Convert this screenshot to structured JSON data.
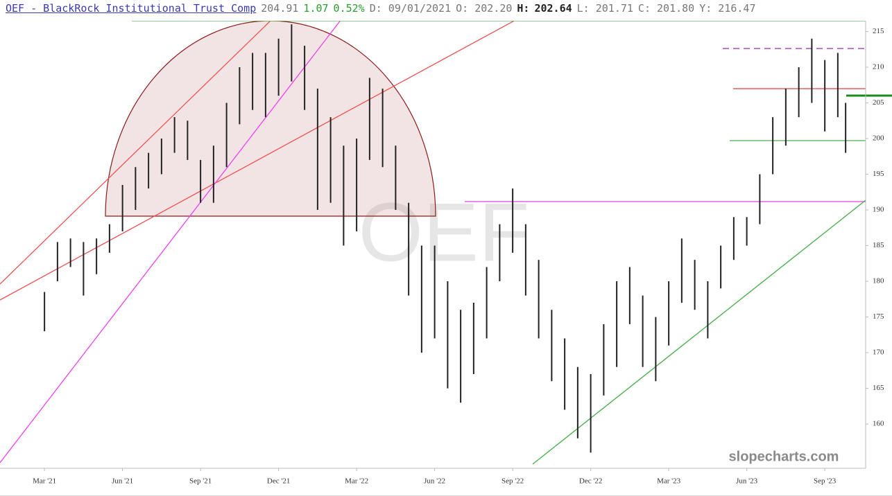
{
  "chart_data": {
    "type": "ohlc",
    "title": "OEF - BlackRock Institutional Trust Comp",
    "quote": [
      {
        "text": "204.91",
        "color": "#777777"
      },
      {
        "text": "1.07",
        "color": "#2a9d2a"
      },
      {
        "text": "0.52%",
        "color": "#2a9d2a"
      },
      {
        "text": "D: 09/01/2021",
        "color": "#777777"
      },
      {
        "text": "O: 202.20",
        "color": "#777777"
      },
      {
        "text": "H:",
        "color": "#222222",
        "bold": true
      },
      {
        "text": "202.64",
        "color": "#222222",
        "bold": true
      },
      {
        "text": "L: 201.71",
        "color": "#777777"
      },
      {
        "text": "C: 201.80",
        "color": "#777777"
      },
      {
        "text": "Y: 216.47",
        "color": "#777777"
      }
    ],
    "watermark": "OEF",
    "brand": "slopecharts.com",
    "color": "#222222",
    "x": [
      2.0,
      2.5,
      3.0,
      3.5,
      4.0,
      4.5,
      5.0,
      5.5,
      6.0,
      6.5,
      7.0,
      7.5,
      8.0,
      8.5,
      9.0,
      9.5,
      10.0,
      10.5,
      11.0,
      11.5,
      12.0,
      12.5,
      13.0,
      13.5,
      14.0,
      14.5,
      15.0,
      15.5,
      16.0,
      16.5,
      17.0,
      17.5,
      18.0,
      18.5,
      19.0,
      19.5,
      20.0,
      20.5,
      21.0,
      21.5,
      22.0,
      22.5,
      23.0,
      23.5,
      24.0,
      24.5,
      25.0,
      25.5,
      26.0,
      26.5,
      27.0,
      27.5,
      28.0,
      28.5,
      29.0,
      29.5,
      30.0,
      30.5,
      31.0,
      31.5,
      32.0,
      32.5,
      32.8
    ],
    "high": [
      178.5,
      185.5,
      186,
      185.5,
      186,
      188,
      193.5,
      196,
      198,
      200,
      203,
      202.5,
      197,
      199,
      205,
      210,
      212,
      212,
      214,
      216,
      213,
      207,
      203,
      199,
      200,
      208.5,
      207,
      199,
      191,
      185,
      185,
      180,
      176,
      177,
      182,
      188,
      193,
      188,
      183,
      176,
      172,
      168,
      167,
      174,
      180,
      182,
      178,
      175,
      180,
      186,
      183,
      180,
      185,
      189,
      189,
      195,
      203,
      207,
      210,
      214,
      211,
      212,
      205
    ],
    "low": [
      173,
      180,
      182,
      178,
      181,
      184,
      187,
      190,
      193,
      195,
      198,
      197,
      191,
      191,
      196,
      202,
      204,
      203,
      206,
      208,
      204,
      190,
      191,
      185,
      187,
      197,
      196,
      190,
      178,
      170,
      172,
      165,
      163,
      167,
      172,
      180,
      184,
      178,
      172,
      166,
      162,
      158,
      156,
      164,
      168,
      174,
      168,
      166,
      171,
      177,
      176,
      172,
      179,
      183,
      185,
      188,
      195,
      199,
      203,
      205,
      201,
      203,
      198
    ],
    "xlim": [
      0.29,
      33.57
    ],
    "ylim": [
      153.8,
      216.5
    ],
    "yticks": [
      160,
      165,
      170,
      175,
      180,
      185,
      190,
      195,
      200,
      205,
      210,
      215
    ],
    "xticks": [
      {
        "value": 2,
        "label": "Mar '21"
      },
      {
        "value": 5,
        "label": "Jun '21"
      },
      {
        "value": 8,
        "label": "Sep '21"
      },
      {
        "value": 11,
        "label": "Dec '21"
      },
      {
        "value": 14,
        "label": "Mar '22"
      },
      {
        "value": 17,
        "label": "Jun '22"
      },
      {
        "value": 20,
        "label": "Sep '22"
      },
      {
        "value": 23,
        "label": "Dec '22"
      },
      {
        "value": 26,
        "label": "Mar '23"
      },
      {
        "value": 29,
        "label": "Jun '23"
      },
      {
        "value": 32,
        "label": "Sep '23"
      }
    ]
  }
}
